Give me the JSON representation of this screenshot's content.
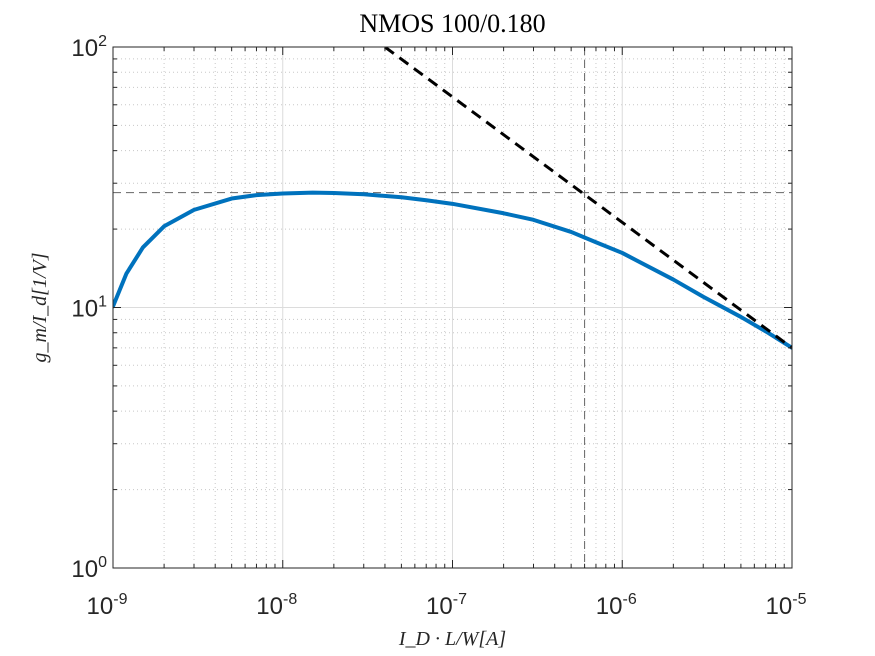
{
  "chart_data": {
    "type": "line",
    "title": "NMOS 100/0.180",
    "xlabel": "I_D · L/W[A]",
    "ylabel": "g_m/I_d[1/V]",
    "xscale": "log",
    "yscale": "log",
    "xlim": [
      1e-09,
      1e-05
    ],
    "ylim": [
      1,
      100
    ],
    "grid": "major and minor",
    "x_ticks": [
      {
        "base": "10",
        "exp": "-9",
        "value": 1e-09
      },
      {
        "base": "10",
        "exp": "-8",
        "value": 1e-08
      },
      {
        "base": "10",
        "exp": "-7",
        "value": 1e-07
      },
      {
        "base": "10",
        "exp": "-6",
        "value": 1e-06
      },
      {
        "base": "10",
        "exp": "-5",
        "value": 1e-05
      }
    ],
    "y_ticks": [
      {
        "base": "10",
        "exp": "0",
        "value": 1
      },
      {
        "base": "10",
        "exp": "1",
        "value": 10
      },
      {
        "base": "10",
        "exp": "2",
        "value": 100
      }
    ],
    "series": [
      {
        "style": "solid",
        "color": "#0072BD",
        "x": [
          1e-09,
          1.2e-09,
          1.5e-09,
          2e-09,
          3e-09,
          5e-09,
          7e-09,
          1e-08,
          1.5e-08,
          2e-08,
          3e-08,
          5e-08,
          7e-08,
          1e-07,
          2e-07,
          3e-07,
          5e-07,
          7e-07,
          1e-06,
          2e-06,
          3e-06,
          5e-06,
          7e-06,
          1e-05
        ],
        "y": [
          10.1,
          13.5,
          17.0,
          20.5,
          23.7,
          26.2,
          27.0,
          27.4,
          27.6,
          27.5,
          27.2,
          26.5,
          25.8,
          25.0,
          23.0,
          21.7,
          19.5,
          17.8,
          16.2,
          12.8,
          11.0,
          9.2,
          8.1,
          7.0
        ]
      },
      {
        "style": "dashed",
        "color": "#000000",
        "x": [
          4e-08,
          1e-05
        ],
        "y": [
          100,
          7.0
        ]
      }
    ],
    "reference_lines": [
      {
        "orientation": "horizontal",
        "value": 27.6,
        "style": "dashed",
        "color": "#666666"
      },
      {
        "orientation": "vertical",
        "value": 6e-07,
        "style": "dashed",
        "color": "#666666"
      }
    ]
  }
}
